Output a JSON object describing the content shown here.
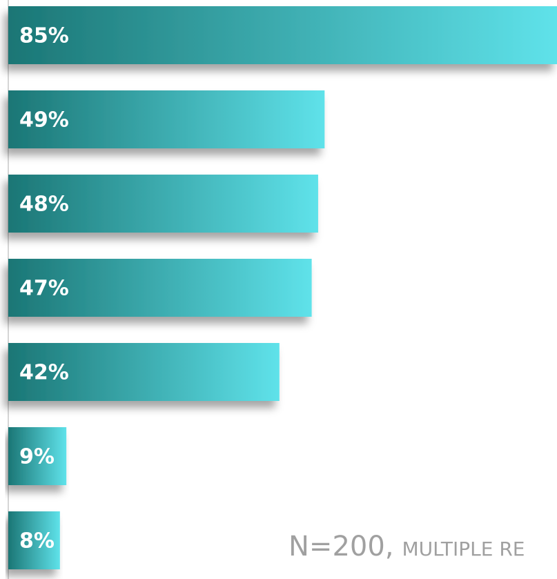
{
  "chart_data": {
    "type": "barh",
    "categories": [
      null,
      null,
      null,
      null,
      null,
      null,
      null
    ],
    "values": [
      85,
      49,
      48,
      47,
      42,
      9,
      8
    ],
    "value_labels": [
      "85%",
      "49%",
      "48%",
      "47%",
      "42%",
      "9%",
      "8%"
    ],
    "xlim": [
      0,
      85
    ],
    "colors": [
      "#1b7675",
      "#5fe2ea"
    ],
    "annotations": [
      "N=200,",
      "MULTIPLE RE"
    ]
  }
}
